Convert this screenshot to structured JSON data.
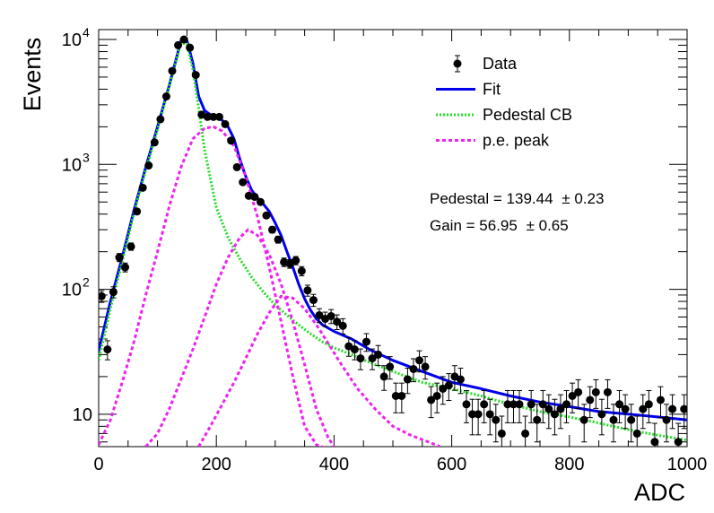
{
  "chart_data": {
    "type": "scatter",
    "xlabel": "ADC",
    "ylabel": "Events",
    "xlim": [
      0,
      1000
    ],
    "ylim": [
      5.5,
      12000
    ],
    "yscale": "log",
    "x_ticks": [
      0,
      200,
      400,
      600,
      800,
      1000
    ],
    "y_ticks": [
      {
        "value": 10,
        "label": "10"
      },
      {
        "value": 100,
        "label": "10",
        "sup": "2"
      },
      {
        "value": 1000,
        "label": "10",
        "sup": "3"
      },
      {
        "value": 10000,
        "label": "10",
        "sup": "4"
      }
    ],
    "legend": {
      "position": "top-right",
      "entries": [
        {
          "label": "Data",
          "style": "marker",
          "color": "#000000"
        },
        {
          "label": "Fit",
          "style": "solid",
          "color": "#0000ee"
        },
        {
          "label": "Pedestal CB",
          "style": "dotted",
          "color": "#22dd22"
        },
        {
          "label": "p.e. peak",
          "style": "dashed",
          "color": "#ee22ee"
        }
      ]
    },
    "annotations": [
      {
        "text": "Pedestal = 139.44",
        "pm": "± 0.23"
      },
      {
        "text": "Gain = 56.95",
        "pm": "± 0.65"
      }
    ],
    "series": [
      {
        "name": "Data",
        "kind": "points",
        "color": "#000000",
        "x": [
          5,
          15,
          25,
          35,
          45,
          55,
          65,
          75,
          85,
          95,
          105,
          115,
          125,
          135,
          145,
          155,
          165,
          175,
          185,
          195,
          205,
          215,
          225,
          235,
          245,
          255,
          265,
          275,
          285,
          295,
          305,
          315,
          325,
          335,
          345,
          355,
          365,
          375,
          385,
          395,
          405,
          415,
          425,
          435,
          445,
          455,
          465,
          475,
          485,
          495,
          505,
          515,
          525,
          535,
          545,
          555,
          565,
          575,
          585,
          595,
          605,
          615,
          625,
          635,
          645,
          655,
          665,
          675,
          685,
          695,
          705,
          715,
          725,
          735,
          745,
          755,
          765,
          775,
          785,
          795,
          805,
          815,
          825,
          835,
          845,
          855,
          865,
          875,
          885,
          895,
          905,
          915,
          925,
          935,
          945,
          955,
          965,
          975,
          985,
          995
        ],
        "y": [
          88,
          33,
          95,
          180,
          150,
          220,
          420,
          650,
          980,
          1500,
          2300,
          3500,
          5600,
          9000,
          10000,
          8600,
          5200,
          2500,
          2400,
          2400,
          2400,
          2100,
          1550,
          950,
          720,
          560,
          550,
          500,
          390,
          300,
          250,
          165,
          160,
          170,
          140,
          98,
          82,
          62,
          58,
          61,
          55,
          51,
          35,
          33,
          28,
          38,
          28,
          30,
          20,
          24,
          14,
          14,
          19,
          23,
          27,
          24,
          13,
          14,
          16,
          17,
          20,
          19,
          12,
          10,
          10,
          12,
          10,
          9,
          7,
          12,
          12,
          12,
          7,
          12,
          9,
          12,
          11,
          10,
          11,
          12,
          14,
          15,
          9,
          13,
          15,
          10,
          15,
          9,
          12,
          11,
          9,
          7,
          11,
          12,
          6,
          13,
          9,
          11,
          6,
          11
        ],
        "yerr_pct": 0.28
      },
      {
        "name": "Fit",
        "kind": "line",
        "color": "#0000ee",
        "x": [
          0,
          20,
          40,
          60,
          80,
          100,
          120,
          140,
          150,
          160,
          170,
          180,
          190,
          200,
          210,
          220,
          230,
          240,
          250,
          260,
          270,
          280,
          290,
          300,
          310,
          320,
          330,
          340,
          350,
          360,
          370,
          380,
          400,
          430,
          460,
          500,
          550,
          600,
          650,
          700,
          750,
          800,
          850,
          900,
          950,
          1000
        ],
        "y": [
          32,
          80,
          180,
          430,
          950,
          2000,
          4300,
          9800,
          9800,
          6500,
          3500,
          2700,
          2500,
          2400,
          2250,
          2000,
          1600,
          1100,
          800,
          620,
          540,
          480,
          420,
          340,
          270,
          200,
          150,
          110,
          84,
          68,
          58,
          52,
          46,
          40,
          33,
          27,
          22,
          18,
          16,
          14,
          12.5,
          11.5,
          10.5,
          10,
          9.5,
          9
        ]
      },
      {
        "name": "Pedestal CB",
        "kind": "line",
        "color": "#22dd22",
        "x": [
          0,
          20,
          40,
          60,
          80,
          100,
          120,
          140,
          150,
          160,
          170,
          180,
          200,
          220,
          240,
          260,
          280,
          300,
          320,
          340,
          360,
          380,
          400,
          430,
          460,
          500,
          550,
          600,
          650,
          700,
          750,
          800,
          850,
          900,
          950,
          1000
        ],
        "y": [
          27,
          70,
          165,
          410,
          900,
          1900,
          4200,
          9400,
          9200,
          5800,
          2800,
          1300,
          450,
          260,
          175,
          125,
          95,
          75,
          62,
          52,
          44,
          38,
          34,
          30,
          26,
          22,
          18,
          16,
          14,
          12,
          10.5,
          9.5,
          8.5,
          7.5,
          6.8,
          6.2
        ]
      },
      {
        "name": "p.e. peak 1",
        "kind": "line",
        "color": "#ee22ee",
        "x": [
          0,
          20,
          40,
          60,
          80,
          100,
          120,
          140,
          160,
          180,
          195,
          210,
          230,
          250,
          270,
          290,
          310,
          330,
          350,
          370,
          380
        ],
        "y": [
          5.7,
          9,
          18,
          38,
          90,
          200,
          460,
          950,
          1600,
          1950,
          2000,
          1850,
          1400,
          800,
          380,
          150,
          55,
          20,
          8,
          5.7,
          5.5
        ]
      },
      {
        "name": "p.e. peak 2",
        "kind": "line",
        "color": "#ee22ee",
        "x": [
          80,
          100,
          120,
          140,
          160,
          180,
          200,
          220,
          240,
          254,
          270,
          290,
          310,
          330,
          350,
          370,
          390,
          400
        ],
        "y": [
          5.5,
          7,
          11,
          19,
          33,
          60,
          110,
          180,
          260,
          300,
          270,
          190,
          110,
          55,
          25,
          11,
          6.5,
          5.5
        ]
      },
      {
        "name": "p.e. peak 3",
        "kind": "line",
        "color": "#ee22ee",
        "x": [
          170,
          190,
          210,
          230,
          250,
          270,
          290,
          310,
          330,
          350,
          370,
          390,
          410,
          440,
          470,
          500,
          530,
          560,
          580
        ],
        "y": [
          5.5,
          8,
          12,
          18,
          28,
          44,
          65,
          88,
          85,
          70,
          52,
          37,
          26,
          16,
          11,
          8,
          6.8,
          6,
          5.5
        ]
      }
    ]
  }
}
